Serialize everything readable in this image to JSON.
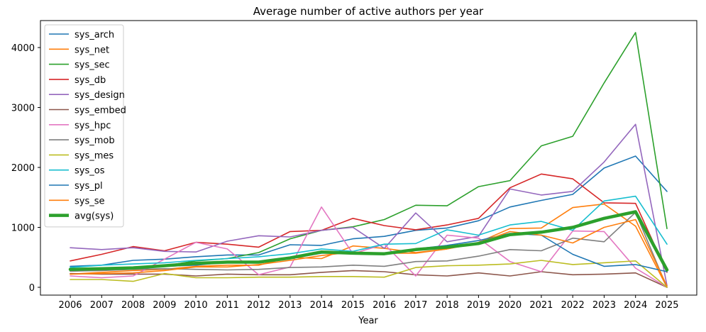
{
  "chart_data": {
    "type": "line",
    "title": "Average number of active authors per year",
    "xlabel": "Year",
    "ylabel": "",
    "x": [
      2006,
      2007,
      2008,
      2009,
      2010,
      2011,
      2012,
      2013,
      2014,
      2015,
      2016,
      2017,
      2018,
      2019,
      2020,
      2021,
      2022,
      2023,
      2024,
      2025
    ],
    "x_labels": [
      "2006",
      "2007",
      "2008",
      "2009",
      "2010",
      "2011",
      "2012",
      "2013",
      "2014",
      "2015",
      "2016",
      "2017",
      "2018",
      "2019",
      "2020",
      "2021",
      "2022",
      "2023",
      "2024",
      "2025"
    ],
    "ylim": [
      -130,
      4450
    ],
    "yticks": [
      0,
      1000,
      2000,
      3000,
      4000
    ],
    "ytick_labels": [
      "0",
      "1000",
      "2000",
      "3000",
      "4000"
    ],
    "legend_position": "top-left",
    "grid": false,
    "series": [
      {
        "name": "sys_arch",
        "color": "#1f77b4",
        "values": [
          350,
          370,
          450,
          470,
          510,
          540,
          540,
          710,
          700,
          810,
          850,
          950,
          990,
          1110,
          1340,
          1450,
          1550,
          1990,
          2190,
          1600
        ]
      },
      {
        "name": "sys_net",
        "color": "#ff7f0e",
        "values": [
          220,
          250,
          280,
          300,
          350,
          370,
          370,
          500,
          480,
          690,
          650,
          580,
          640,
          750,
          980,
          990,
          1330,
          1390,
          1020,
          0
        ]
      },
      {
        "name": "sys_sec",
        "color": "#2ca02c",
        "values": [
          270,
          290,
          340,
          360,
          440,
          480,
          580,
          810,
          950,
          1010,
          1130,
          1370,
          1360,
          1680,
          1780,
          2360,
          2520,
          3410,
          4250,
          980
        ]
      },
      {
        "name": "sys_db",
        "color": "#d62728",
        "values": [
          440,
          550,
          680,
          610,
          750,
          720,
          670,
          930,
          950,
          1150,
          1030,
          960,
          1040,
          1150,
          1660,
          1890,
          1810,
          1410,
          1400,
          250
        ]
      },
      {
        "name": "sys_design",
        "color": "#9467bd",
        "values": [
          660,
          630,
          660,
          600,
          590,
          770,
          860,
          840,
          950,
          1000,
          650,
          1240,
          760,
          850,
          1640,
          1540,
          1600,
          2090,
          2720,
          30
        ]
      },
      {
        "name": "sys_embed",
        "color": "#8c564b",
        "values": [
          230,
          220,
          220,
          220,
          190,
          220,
          210,
          210,
          250,
          280,
          260,
          210,
          190,
          240,
          190,
          260,
          210,
          220,
          240,
          0
        ]
      },
      {
        "name": "sys_hpc",
        "color": "#e377c2",
        "values": [
          190,
          160,
          190,
          470,
          750,
          640,
          210,
          340,
          1340,
          560,
          720,
          190,
          870,
          820,
          430,
          260,
          940,
          930,
          320,
          0
        ]
      },
      {
        "name": "sys_mob",
        "color": "#7f7f7f",
        "values": [
          270,
          280,
          300,
          310,
          300,
          290,
          300,
          330,
          340,
          370,
          350,
          430,
          440,
          520,
          630,
          610,
          820,
          760,
          1250,
          0
        ]
      },
      {
        "name": "sys_mes",
        "color": "#bcbd22",
        "values": [
          130,
          130,
          100,
          230,
          160,
          160,
          170,
          170,
          180,
          180,
          170,
          330,
          360,
          370,
          390,
          450,
          380,
          410,
          440,
          0
        ]
      },
      {
        "name": "sys_os",
        "color": "#17becf",
        "values": [
          330,
          370,
          390,
          410,
          450,
          480,
          510,
          560,
          640,
          600,
          720,
          730,
          960,
          870,
          1040,
          1100,
          950,
          1440,
          1520,
          720
        ]
      },
      {
        "name": "sys_pl",
        "color": "#1f77b4",
        "values": [
          300,
          320,
          330,
          350,
          370,
          420,
          420,
          480,
          570,
          580,
          570,
          640,
          700,
          780,
          900,
          870,
          550,
          350,
          380,
          260
        ]
      },
      {
        "name": "sys_se",
        "color": "#ff7f0e",
        "values": [
          220,
          230,
          240,
          280,
          340,
          340,
          380,
          450,
          530,
          590,
          570,
          570,
          640,
          740,
          930,
          870,
          740,
          1000,
          1130,
          20
        ]
      },
      {
        "name": "avg(sys)",
        "color": "#2ca02c",
        "thick": true,
        "values": [
          300,
          310,
          325,
          360,
          400,
          420,
          420,
          490,
          590,
          570,
          560,
          630,
          670,
          730,
          880,
          920,
          1000,
          1150,
          1260,
          290
        ]
      }
    ]
  }
}
